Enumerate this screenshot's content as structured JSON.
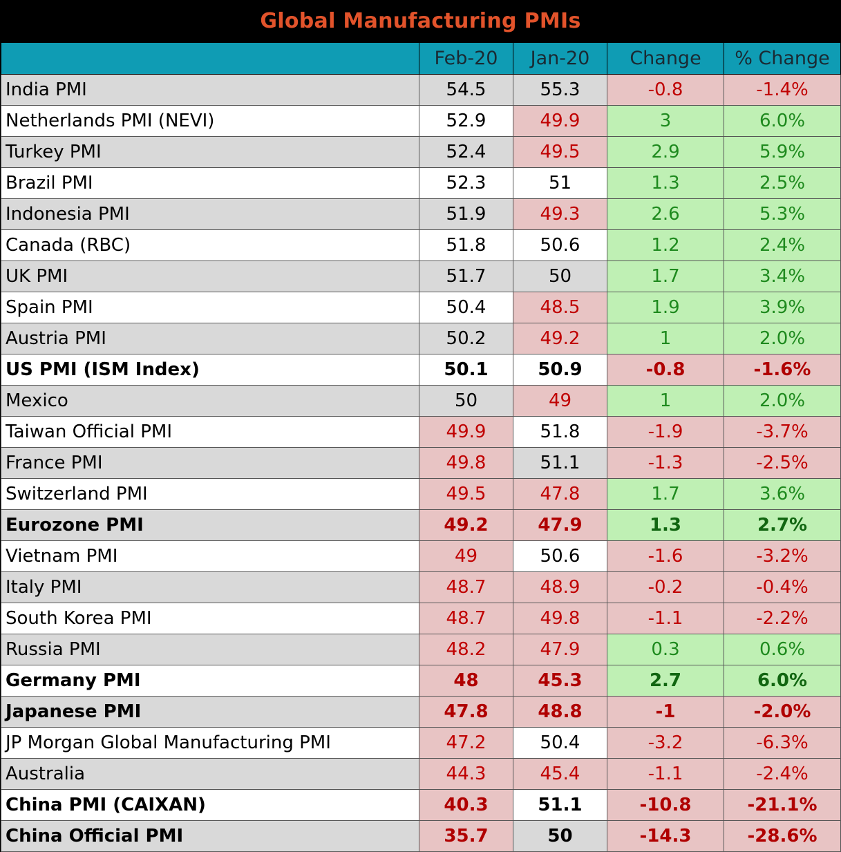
{
  "chart_data": {
    "type": "table",
    "title": "Global Manufacturing PMIs",
    "columns": [
      "",
      "Feb-20",
      "Jan-20",
      "Change",
      "% Change"
    ],
    "rows": [
      {
        "name": "India PMI",
        "feb": "54.5",
        "jan": "55.3",
        "change": "-0.8",
        "pct": "-1.4%",
        "bold": false
      },
      {
        "name": "Netherlands PMI (NEVI)",
        "feb": "52.9",
        "jan": "49.9",
        "change": "3",
        "pct": "6.0%",
        "bold": false
      },
      {
        "name": "Turkey PMI",
        "feb": "52.4",
        "jan": "49.5",
        "change": "2.9",
        "pct": "5.9%",
        "bold": false
      },
      {
        "name": "Brazil PMI",
        "feb": "52.3",
        "jan": "51",
        "change": "1.3",
        "pct": "2.5%",
        "bold": false
      },
      {
        "name": "Indonesia PMI",
        "feb": "51.9",
        "jan": "49.3",
        "change": "2.6",
        "pct": "5.3%",
        "bold": false
      },
      {
        "name": "Canada (RBC)",
        "feb": "51.8",
        "jan": "50.6",
        "change": "1.2",
        "pct": "2.4%",
        "bold": false
      },
      {
        "name": "UK PMI",
        "feb": "51.7",
        "jan": "50",
        "change": "1.7",
        "pct": "3.4%",
        "bold": false
      },
      {
        "name": "Spain PMI",
        "feb": "50.4",
        "jan": "48.5",
        "change": "1.9",
        "pct": "3.9%",
        "bold": false
      },
      {
        "name": "Austria PMI",
        "feb": "50.2",
        "jan": "49.2",
        "change": "1",
        "pct": "2.0%",
        "bold": false
      },
      {
        "name": "US PMI (ISM Index)",
        "feb": "50.1",
        "jan": "50.9",
        "change": "-0.8",
        "pct": "-1.6%",
        "bold": true
      },
      {
        "name": "Mexico",
        "feb": "50",
        "jan": "49",
        "change": "1",
        "pct": "2.0%",
        "bold": false
      },
      {
        "name": "Taiwan Official PMI",
        "feb": "49.9",
        "jan": "51.8",
        "change": "-1.9",
        "pct": "-3.7%",
        "bold": false
      },
      {
        "name": "France PMI",
        "feb": "49.8",
        "jan": "51.1",
        "change": "-1.3",
        "pct": "-2.5%",
        "bold": false
      },
      {
        "name": "Switzerland PMI",
        "feb": "49.5",
        "jan": "47.8",
        "change": "1.7",
        "pct": "3.6%",
        "bold": false
      },
      {
        "name": "Eurozone PMI",
        "feb": "49.2",
        "jan": "47.9",
        "change": "1.3",
        "pct": "2.7%",
        "bold": true
      },
      {
        "name": "Vietnam PMI",
        "feb": "49",
        "jan": "50.6",
        "change": "-1.6",
        "pct": "-3.2%",
        "bold": false
      },
      {
        "name": "Italy PMI",
        "feb": "48.7",
        "jan": "48.9",
        "change": "-0.2",
        "pct": "-0.4%",
        "bold": false
      },
      {
        "name": "South Korea PMI",
        "feb": "48.7",
        "jan": "49.8",
        "change": "-1.1",
        "pct": "-2.2%",
        "bold": false
      },
      {
        "name": "Russia PMI",
        "feb": "48.2",
        "jan": "47.9",
        "change": "0.3",
        "pct": "0.6%",
        "bold": false
      },
      {
        "name": "Germany PMI",
        "feb": "48",
        "jan": "45.3",
        "change": "2.7",
        "pct": "6.0%",
        "bold": true
      },
      {
        "name": "Japanese PMI",
        "feb": "47.8",
        "jan": "48.8",
        "change": "-1",
        "pct": "-2.0%",
        "bold": true
      },
      {
        "name": "JP Morgan Global Manufacturing PMI",
        "feb": "47.2",
        "jan": "50.4",
        "change": "-3.2",
        "pct": "-6.3%",
        "bold": false
      },
      {
        "name": "Australia",
        "feb": "44.3",
        "jan": "45.4",
        "change": "-1.1",
        "pct": "-2.4%",
        "bold": false
      },
      {
        "name": "China PMI (CAIXAN)",
        "feb": "40.3",
        "jan": "51.1",
        "change": "-10.8",
        "pct": "-21.1%",
        "bold": true
      },
      {
        "name": "China Official PMI",
        "feb": "35.7",
        "jan": "50",
        "change": "-14.3",
        "pct": "-28.6%",
        "bold": true
      }
    ],
    "threshold": 50,
    "colors": {
      "header_bg": "#0f9cb4",
      "title_text": "#e2532b",
      "negative_bg": "#e8c4c4",
      "negative_text": "#c00000",
      "positive_bg": "#bff0b4",
      "positive_text": "#1e8a1e"
    }
  }
}
